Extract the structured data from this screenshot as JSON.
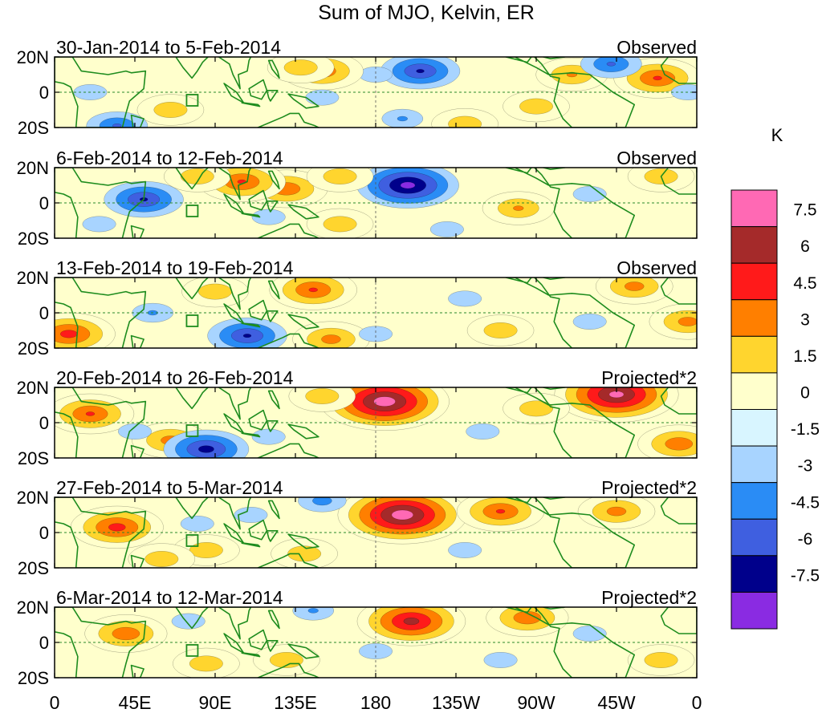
{
  "chart_data": {
    "type": "heatmap",
    "title": "Sum of MJO, Kelvin, ER",
    "colorbar_unit": "K",
    "colorbar_levels": [
      "7.5",
      "6",
      "4.5",
      "3",
      "1.5",
      "0",
      "-1.5",
      "-3",
      "-4.5",
      "-6",
      "-7.5"
    ],
    "colorbar_colors": [
      "#ff69b4",
      "#a52a2a",
      "#ff1a1a",
      "#ff7f00",
      "#ffd52e",
      "#ffffcc",
      "#d8f5ff",
      "#a8d4ff",
      "#2a8cf5",
      "#3f5fe0",
      "#00008b",
      "#8a2be2"
    ],
    "x_ticks": [
      "0",
      "45E",
      "90E",
      "135E",
      "180",
      "135W",
      "90W",
      "45W",
      "0"
    ],
    "y_ticks": [
      "20N",
      "0",
      "20S"
    ],
    "xlim": [
      0,
      360
    ],
    "ylim": [
      -20,
      20
    ],
    "land_color": "#1e8c1e",
    "panels": [
      {
        "period": "30-Jan-2014 to 5-Feb-2014",
        "label": "Observed",
        "blobs": [
          {
            "lon": 205,
            "lat": 12,
            "value": -6.5
          },
          {
            "lon": 180,
            "lat": 10,
            "value": -3
          },
          {
            "lon": 150,
            "lat": 12,
            "value": 4.5
          },
          {
            "lon": 138,
            "lat": 14,
            "value": 3
          },
          {
            "lon": 270,
            "lat": -8,
            "value": 3
          },
          {
            "lon": 290,
            "lat": 10,
            "value": 3.5
          },
          {
            "lon": 338,
            "lat": 8,
            "value": 5
          },
          {
            "lon": 312,
            "lat": 16,
            "value": -5
          },
          {
            "lon": 150,
            "lat": -3,
            "value": -3
          },
          {
            "lon": 195,
            "lat": -15,
            "value": -3.5
          },
          {
            "lon": 20,
            "lat": 0,
            "value": -3
          },
          {
            "lon": 65,
            "lat": -10,
            "value": 3
          },
          {
            "lon": 35,
            "lat": -19,
            "value": -5
          },
          {
            "lon": 230,
            "lat": -18,
            "value": 3
          },
          {
            "lon": 355,
            "lat": 0,
            "value": -3
          }
        ]
      },
      {
        "period": "6-Feb-2014 to 12-Feb-2014",
        "label": "Observed",
        "blobs": [
          {
            "lon": 198,
            "lat": 10,
            "value": -8.5
          },
          {
            "lon": 50,
            "lat": 2,
            "value": -6.5
          },
          {
            "lon": 130,
            "lat": 8,
            "value": 4.5
          },
          {
            "lon": 105,
            "lat": 12,
            "value": 5
          },
          {
            "lon": 160,
            "lat": 15,
            "value": 3
          },
          {
            "lon": 260,
            "lat": -3,
            "value": 3.5
          },
          {
            "lon": 340,
            "lat": 15,
            "value": 3
          },
          {
            "lon": 80,
            "lat": 15,
            "value": 3
          },
          {
            "lon": 25,
            "lat": -12,
            "value": -3
          },
          {
            "lon": 120,
            "lat": -8,
            "value": -3
          },
          {
            "lon": 220,
            "lat": -15,
            "value": -3
          },
          {
            "lon": 300,
            "lat": 5,
            "value": -3
          },
          {
            "lon": 160,
            "lat": -12,
            "value": 3
          }
        ]
      },
      {
        "period": "13-Feb-2014 to 19-Feb-2014",
        "label": "Observed",
        "blobs": [
          {
            "lon": 145,
            "lat": 13,
            "value": 5
          },
          {
            "lon": 8,
            "lat": -12,
            "value": 5.5
          },
          {
            "lon": 108,
            "lat": -13,
            "value": -6.5
          },
          {
            "lon": 55,
            "lat": 0,
            "value": -3.5
          },
          {
            "lon": 155,
            "lat": -15,
            "value": 4
          },
          {
            "lon": 325,
            "lat": 15,
            "value": 4
          },
          {
            "lon": 355,
            "lat": -5,
            "value": 4
          },
          {
            "lon": 230,
            "lat": 8,
            "value": -3
          },
          {
            "lon": 180,
            "lat": -12,
            "value": -3
          },
          {
            "lon": 90,
            "lat": 12,
            "value": 3
          },
          {
            "lon": 250,
            "lat": -10,
            "value": 3
          },
          {
            "lon": 300,
            "lat": -5,
            "value": -3
          }
        ]
      },
      {
        "period": "20-Feb-2014 to 26-Feb-2014",
        "label": "Projected*2",
        "blobs": [
          {
            "lon": 185,
            "lat": 12,
            "value": 9
          },
          {
            "lon": 315,
            "lat": 16,
            "value": 8.5
          },
          {
            "lon": 20,
            "lat": 5,
            "value": 5
          },
          {
            "lon": 65,
            "lat": -10,
            "value": 4
          },
          {
            "lon": 85,
            "lat": -15,
            "value": -7
          },
          {
            "lon": 150,
            "lat": 15,
            "value": 3
          },
          {
            "lon": 240,
            "lat": -5,
            "value": -3
          },
          {
            "lon": 350,
            "lat": -12,
            "value": 4.5
          },
          {
            "lon": 270,
            "lat": 8,
            "value": 3
          },
          {
            "lon": 120,
            "lat": -8,
            "value": -3
          },
          {
            "lon": 45,
            "lat": -5,
            "value": -3
          }
        ]
      },
      {
        "period": "27-Feb-2014 to 5-Mar-2014",
        "label": "Projected*2",
        "blobs": [
          {
            "lon": 195,
            "lat": 10,
            "value": 9
          },
          {
            "lon": 35,
            "lat": 3,
            "value": 5.5
          },
          {
            "lon": 250,
            "lat": 12,
            "value": 5
          },
          {
            "lon": 315,
            "lat": 12,
            "value": 4
          },
          {
            "lon": 150,
            "lat": 18,
            "value": -4
          },
          {
            "lon": 80,
            "lat": 5,
            "value": -3
          },
          {
            "lon": 85,
            "lat": -10,
            "value": 3
          },
          {
            "lon": 230,
            "lat": -10,
            "value": -3
          },
          {
            "lon": 140,
            "lat": -12,
            "value": 3
          },
          {
            "lon": 60,
            "lat": -15,
            "value": 3
          },
          {
            "lon": 110,
            "lat": 10,
            "value": -3
          }
        ]
      },
      {
        "period": "6-Mar-2014 to 12-Mar-2014",
        "label": "Projected*2",
        "blobs": [
          {
            "lon": 200,
            "lat": 12,
            "value": 7
          },
          {
            "lon": 265,
            "lat": 14,
            "value": 4.5
          },
          {
            "lon": 40,
            "lat": 5,
            "value": 4.5
          },
          {
            "lon": 145,
            "lat": 18,
            "value": -3.5
          },
          {
            "lon": 75,
            "lat": 12,
            "value": -3
          },
          {
            "lon": 85,
            "lat": -12,
            "value": 3
          },
          {
            "lon": 250,
            "lat": -10,
            "value": -3
          },
          {
            "lon": 180,
            "lat": -5,
            "value": -3
          },
          {
            "lon": 130,
            "lat": -10,
            "value": 3
          },
          {
            "lon": 340,
            "lat": -10,
            "value": 3
          },
          {
            "lon": 300,
            "lat": 5,
            "value": -3
          }
        ]
      }
    ]
  }
}
